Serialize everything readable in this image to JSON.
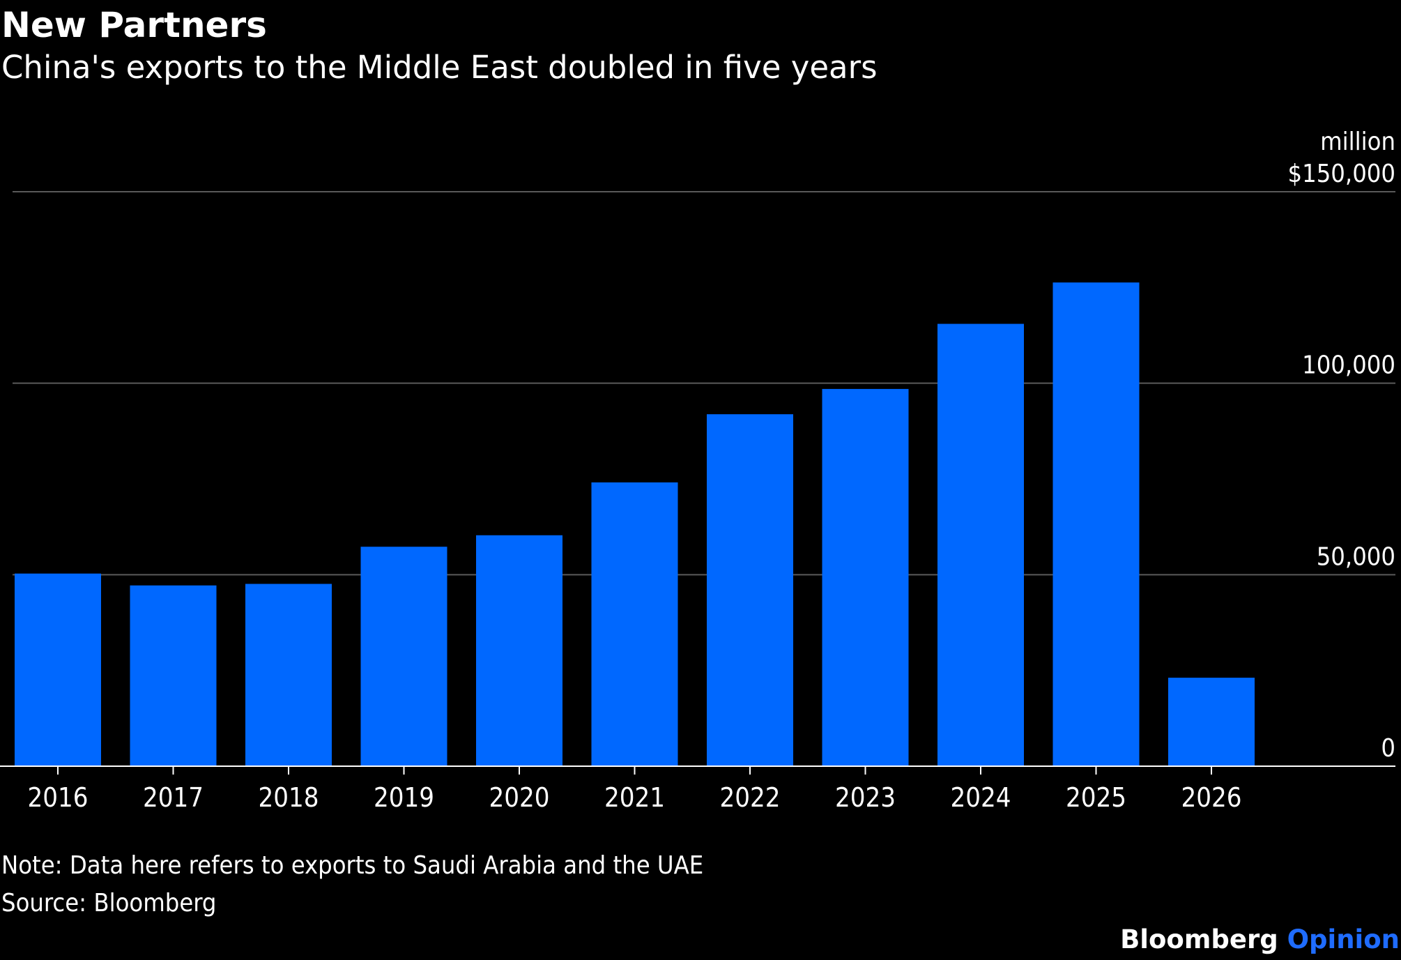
{
  "title": "New Partners",
  "subtitle": "China's exports to the Middle East doubled in five years",
  "note": "Note: Data here refers to exports to Saudi Arabia and the UAE",
  "source": "Source: Bloomberg",
  "brand": {
    "name": "Bloomberg",
    "section": "Opinion",
    "name_color": "#ffffff",
    "section_color": "#1f6cff"
  },
  "colors": {
    "background": "#000000",
    "bar": "#0068ff",
    "gridline": "#5a5a5a",
    "axis": "#ffffff",
    "text": "#ffffff"
  },
  "chart_data": {
    "type": "bar",
    "title": "New Partners",
    "subtitle": "China's exports to the Middle East doubled in five years",
    "unit_label": "million",
    "categories": [
      "2016",
      "2017",
      "2018",
      "2019",
      "2020",
      "2021",
      "2022",
      "2023",
      "2024",
      "2025",
      "2026"
    ],
    "values": [
      50300,
      47200,
      47600,
      57300,
      60300,
      74100,
      91900,
      98500,
      115500,
      126300,
      23100
    ],
    "ylim": [
      0,
      150000
    ],
    "yticks": [
      0,
      50000,
      100000,
      150000
    ],
    "ytick_labels": [
      "0",
      "50,000",
      "100,000",
      "$150,000"
    ],
    "y_axis_side": "right",
    "grid": true,
    "legend": "none"
  }
}
